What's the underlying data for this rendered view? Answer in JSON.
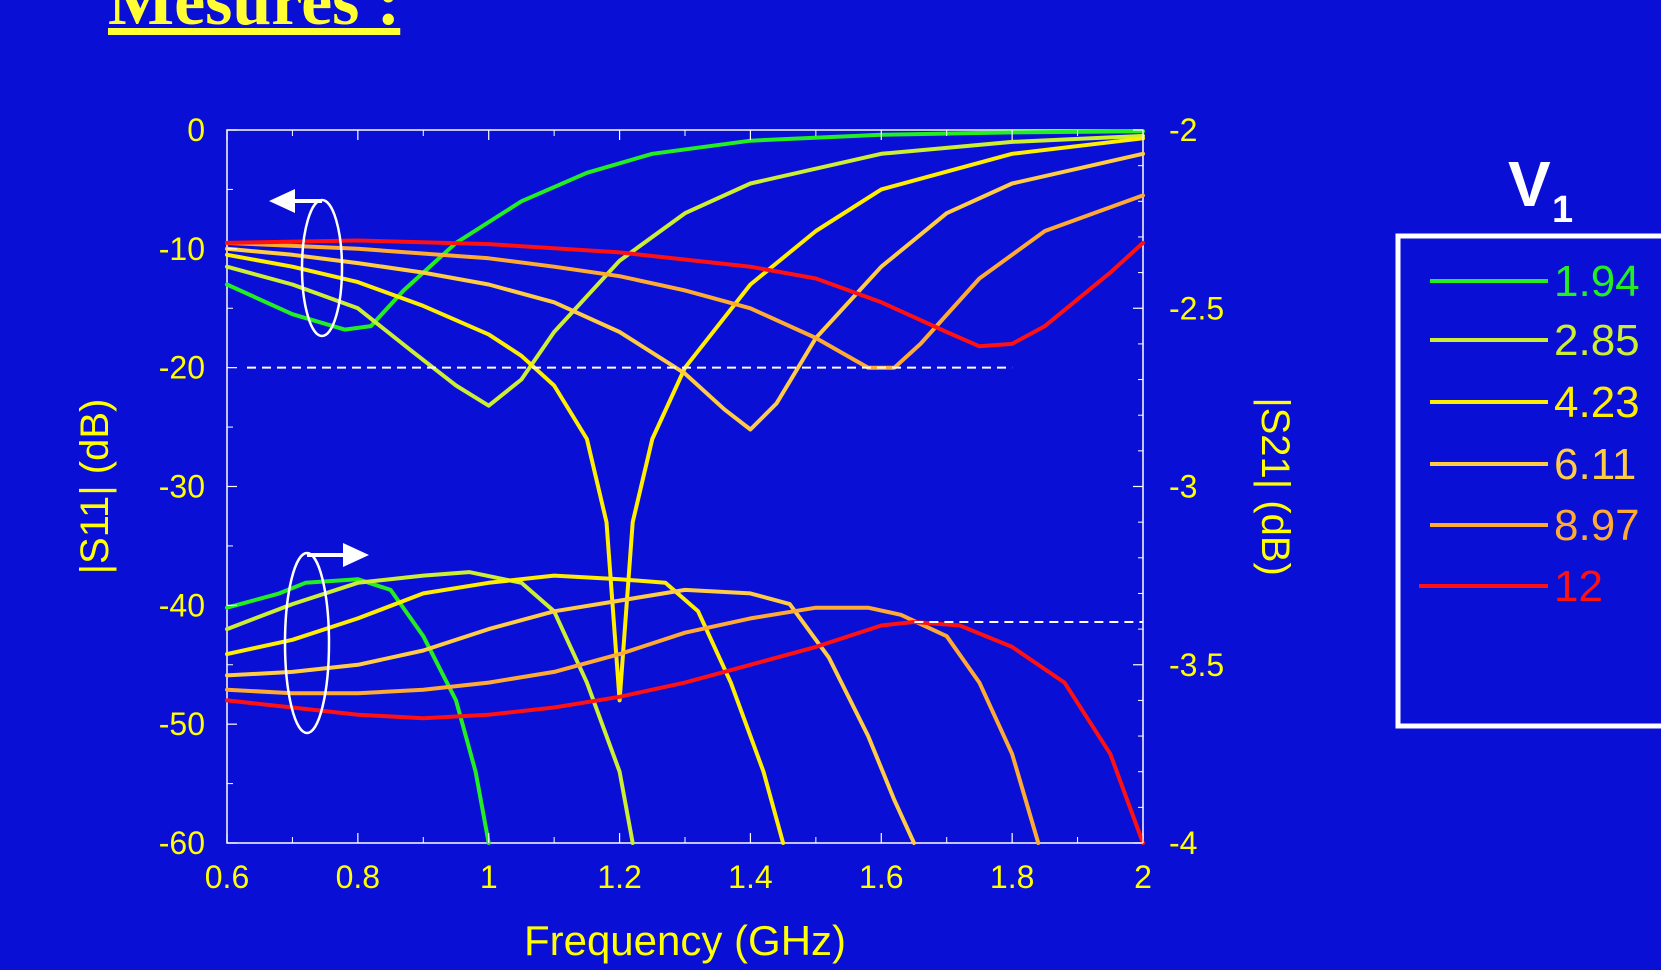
{
  "slide": {
    "title": "Mesures :"
  },
  "colors": {
    "background": "#0a0fd6",
    "axis_text": "#ffff00",
    "frame": "#ffffff",
    "reference_line": "#ffffff"
  },
  "legend": {
    "title": "V",
    "title_subscript": "1",
    "entries": [
      "1.94",
      "2.85",
      "4.23",
      "6.11",
      "8.97",
      "12"
    ]
  },
  "chart_data": {
    "type": "line",
    "title": "",
    "xlabel": "Frequency (GHz)",
    "ylabel_left": "|S11| (dB)",
    "ylabel_right": "|S21| (dB)",
    "xlim": [
      0.6,
      2
    ],
    "ylim_left": [
      -60,
      0
    ],
    "ylim_right": [
      -4,
      -2
    ],
    "x_ticks": [
      "0.6",
      "0.8",
      "1",
      "1.2",
      "1.4",
      "1.6",
      "1.8",
      "2"
    ],
    "y_left_ticks": [
      "0",
      "-10",
      "-20",
      "-30",
      "-40",
      "-50",
      "-60"
    ],
    "y_right_ticks": [
      "-2",
      "-2.5",
      "-3",
      "-3.5",
      "-4"
    ],
    "reference_lines": [
      {
        "axis": "left",
        "y": -20,
        "x_range": [
          0.6,
          1.8
        ]
      },
      {
        "axis": "right",
        "y": -3.38,
        "x_range": [
          1.62,
          2
        ]
      }
    ],
    "legend_position": "right",
    "grid": false,
    "series": [
      {
        "name": "1.94",
        "color": "#22ee22",
        "s11": [
          [
            0.6,
            -13
          ],
          [
            0.7,
            -15.5
          ],
          [
            0.78,
            -16.8
          ],
          [
            0.82,
            -16.5
          ],
          [
            0.87,
            -13.5
          ],
          [
            0.95,
            -9.5
          ],
          [
            1.05,
            -6
          ],
          [
            1.15,
            -3.6
          ],
          [
            1.25,
            -2
          ],
          [
            1.4,
            -0.9
          ],
          [
            1.6,
            -0.4
          ],
          [
            1.8,
            -0.2
          ],
          [
            2,
            -0.1
          ]
        ],
        "s21": [
          [
            0.6,
            -3.34
          ],
          [
            0.68,
            -3.3
          ],
          [
            0.72,
            -3.27
          ],
          [
            0.8,
            -3.26
          ],
          [
            0.85,
            -3.29
          ],
          [
            0.9,
            -3.42
          ],
          [
            0.95,
            -3.6
          ],
          [
            0.98,
            -3.8
          ],
          [
            1.0,
            -4.0
          ]
        ]
      },
      {
        "name": "2.85",
        "color": "#ccee33",
        "s11": [
          [
            0.6,
            -11.5
          ],
          [
            0.7,
            -13
          ],
          [
            0.8,
            -15
          ],
          [
            0.88,
            -18.5
          ],
          [
            0.95,
            -21.5
          ],
          [
            1.0,
            -23.2
          ],
          [
            1.05,
            -21
          ],
          [
            1.1,
            -17
          ],
          [
            1.2,
            -11
          ],
          [
            1.3,
            -7
          ],
          [
            1.4,
            -4.5
          ],
          [
            1.6,
            -2
          ],
          [
            1.8,
            -1
          ],
          [
            2,
            -0.5
          ]
        ],
        "s21": [
          [
            0.6,
            -3.4
          ],
          [
            0.7,
            -3.33
          ],
          [
            0.8,
            -3.27
          ],
          [
            0.9,
            -3.25
          ],
          [
            0.97,
            -3.24
          ],
          [
            1.05,
            -3.27
          ],
          [
            1.1,
            -3.35
          ],
          [
            1.15,
            -3.55
          ],
          [
            1.2,
            -3.8
          ],
          [
            1.22,
            -4.0
          ]
        ]
      },
      {
        "name": "4.23",
        "color": "#ffee00",
        "s11": [
          [
            0.6,
            -10.5
          ],
          [
            0.7,
            -11.5
          ],
          [
            0.8,
            -12.8
          ],
          [
            0.9,
            -14.8
          ],
          [
            1.0,
            -17.2
          ],
          [
            1.05,
            -19
          ],
          [
            1.1,
            -21.5
          ],
          [
            1.15,
            -26
          ],
          [
            1.18,
            -33
          ],
          [
            1.2,
            -48
          ],
          [
            1.22,
            -33
          ],
          [
            1.25,
            -26
          ],
          [
            1.3,
            -20
          ],
          [
            1.4,
            -13
          ],
          [
            1.5,
            -8.5
          ],
          [
            1.6,
            -5
          ],
          [
            1.8,
            -2
          ],
          [
            2,
            -0.7
          ]
        ],
        "s21": [
          [
            0.6,
            -3.47
          ],
          [
            0.7,
            -3.43
          ],
          [
            0.8,
            -3.37
          ],
          [
            0.9,
            -3.3
          ],
          [
            1.0,
            -3.27
          ],
          [
            1.1,
            -3.25
          ],
          [
            1.2,
            -3.26
          ],
          [
            1.27,
            -3.27
          ],
          [
            1.32,
            -3.35
          ],
          [
            1.37,
            -3.55
          ],
          [
            1.42,
            -3.8
          ],
          [
            1.45,
            -4.0
          ]
        ]
      },
      {
        "name": "6.11",
        "color": "#ffcc44",
        "s11": [
          [
            0.6,
            -10
          ],
          [
            0.7,
            -10.5
          ],
          [
            0.8,
            -11.2
          ],
          [
            0.9,
            -12
          ],
          [
            1.0,
            -13
          ],
          [
            1.1,
            -14.5
          ],
          [
            1.2,
            -17
          ],
          [
            1.3,
            -20.5
          ],
          [
            1.36,
            -23.5
          ],
          [
            1.4,
            -25.2
          ],
          [
            1.44,
            -23
          ],
          [
            1.5,
            -17.5
          ],
          [
            1.6,
            -11.5
          ],
          [
            1.7,
            -7
          ],
          [
            1.8,
            -4.5
          ],
          [
            2,
            -2
          ]
        ],
        "s21": [
          [
            0.6,
            -3.53
          ],
          [
            0.7,
            -3.52
          ],
          [
            0.8,
            -3.5
          ],
          [
            0.9,
            -3.46
          ],
          [
            1.0,
            -3.4
          ],
          [
            1.1,
            -3.35
          ],
          [
            1.2,
            -3.32
          ],
          [
            1.3,
            -3.29
          ],
          [
            1.4,
            -3.3
          ],
          [
            1.46,
            -3.33
          ],
          [
            1.52,
            -3.48
          ],
          [
            1.58,
            -3.7
          ],
          [
            1.62,
            -3.88
          ],
          [
            1.65,
            -4.0
          ]
        ]
      },
      {
        "name": "8.97",
        "color": "#ffaa33",
        "s11": [
          [
            0.6,
            -9.5
          ],
          [
            0.8,
            -10
          ],
          [
            1.0,
            -10.8
          ],
          [
            1.1,
            -11.5
          ],
          [
            1.2,
            -12.3
          ],
          [
            1.3,
            -13.5
          ],
          [
            1.4,
            -15
          ],
          [
            1.5,
            -17.5
          ],
          [
            1.58,
            -20
          ],
          [
            1.62,
            -20
          ],
          [
            1.66,
            -18
          ],
          [
            1.75,
            -12.5
          ],
          [
            1.85,
            -8.5
          ],
          [
            2,
            -5.5
          ]
        ],
        "s21": [
          [
            0.6,
            -3.57
          ],
          [
            0.7,
            -3.58
          ],
          [
            0.8,
            -3.58
          ],
          [
            0.9,
            -3.57
          ],
          [
            1.0,
            -3.55
          ],
          [
            1.1,
            -3.52
          ],
          [
            1.2,
            -3.47
          ],
          [
            1.3,
            -3.41
          ],
          [
            1.4,
            -3.37
          ],
          [
            1.5,
            -3.34
          ],
          [
            1.58,
            -3.34
          ],
          [
            1.63,
            -3.36
          ],
          [
            1.7,
            -3.42
          ],
          [
            1.75,
            -3.55
          ],
          [
            1.8,
            -3.75
          ],
          [
            1.84,
            -4.0
          ]
        ]
      },
      {
        "name": "12",
        "color": "#ff1111",
        "s11": [
          [
            0.6,
            -9.5
          ],
          [
            0.8,
            -9.3
          ],
          [
            1.0,
            -9.6
          ],
          [
            1.2,
            -10.3
          ],
          [
            1.4,
            -11.5
          ],
          [
            1.5,
            -12.5
          ],
          [
            1.6,
            -14.5
          ],
          [
            1.7,
            -17
          ],
          [
            1.75,
            -18.2
          ],
          [
            1.8,
            -18
          ],
          [
            1.85,
            -16.5
          ],
          [
            1.95,
            -12
          ],
          [
            2,
            -9.5
          ]
        ],
        "s21": [
          [
            0.6,
            -3.6
          ],
          [
            0.7,
            -3.62
          ],
          [
            0.8,
            -3.64
          ],
          [
            0.9,
            -3.65
          ],
          [
            1.0,
            -3.64
          ],
          [
            1.1,
            -3.62
          ],
          [
            1.2,
            -3.59
          ],
          [
            1.3,
            -3.55
          ],
          [
            1.4,
            -3.5
          ],
          [
            1.5,
            -3.45
          ],
          [
            1.6,
            -3.39
          ],
          [
            1.65,
            -3.38
          ],
          [
            1.72,
            -3.39
          ],
          [
            1.8,
            -3.45
          ],
          [
            1.88,
            -3.55
          ],
          [
            1.95,
            -3.75
          ],
          [
            2.0,
            -4.0
          ]
        ]
      }
    ]
  }
}
